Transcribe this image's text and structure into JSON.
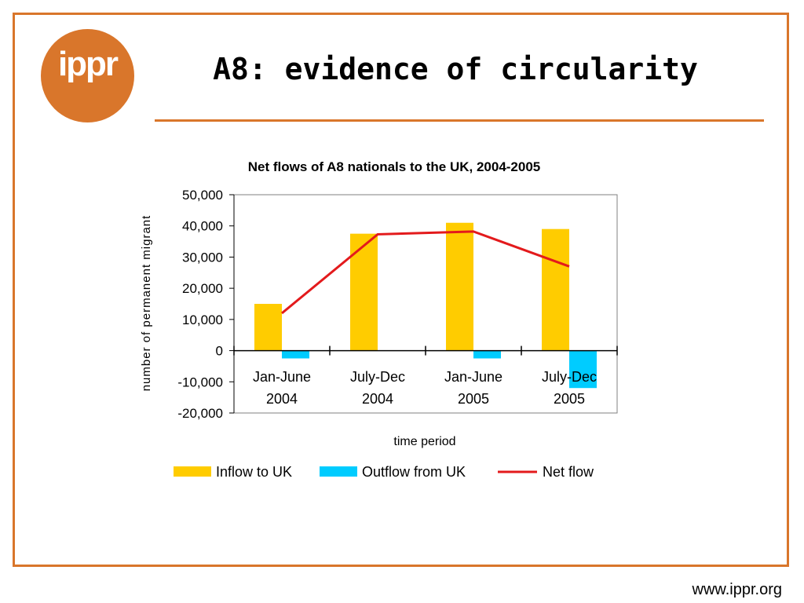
{
  "slide": {
    "title": "A8: evidence of circularity",
    "logo_text": "ippr",
    "footer_url": "www.ippr.org"
  },
  "colors": {
    "frame": "#D9762B",
    "inflow": "#FFCC00",
    "outflow": "#00CCFF",
    "net": "#E31A1C"
  },
  "chart_data": {
    "type": "bar",
    "title": "Net flows of A8 nationals to the UK, 2004-2005",
    "xlabel": "time period",
    "ylabel": "number of permanent migrant",
    "ylim": [
      -20000,
      50000
    ],
    "yticks": [
      "50,000",
      "40,000",
      "30,000",
      "20,000",
      "10,000",
      "0",
      "-10,000",
      "-20,000"
    ],
    "categories": [
      [
        "Jan-June",
        "2004"
      ],
      [
        "July-Dec",
        "2004"
      ],
      [
        "Jan-June",
        "2005"
      ],
      [
        "July-Dec",
        "2005"
      ]
    ],
    "series": [
      {
        "name": "Inflow to UK",
        "kind": "bar",
        "color": "#FFCC00",
        "values": [
          15000,
          37500,
          41000,
          39000
        ]
      },
      {
        "name": "Outflow from UK",
        "kind": "bar",
        "color": "#00CCFF",
        "values": [
          -2500,
          0,
          -2500,
          -12000
        ]
      },
      {
        "name": "Net flow",
        "kind": "line",
        "color": "#E31A1C",
        "values": [
          12000,
          37300,
          38200,
          27000
        ]
      }
    ],
    "legend_position": "bottom",
    "grid": false
  }
}
